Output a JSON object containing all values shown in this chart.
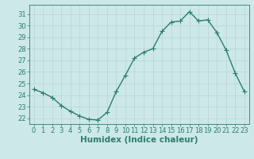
{
  "x": [
    0,
    1,
    2,
    3,
    4,
    5,
    6,
    7,
    8,
    9,
    10,
    11,
    12,
    13,
    14,
    15,
    16,
    17,
    18,
    19,
    20,
    21,
    22,
    23
  ],
  "y": [
    24.5,
    24.2,
    23.8,
    23.1,
    22.6,
    22.2,
    21.9,
    21.85,
    22.5,
    24.3,
    25.7,
    27.2,
    27.7,
    28.0,
    29.5,
    30.3,
    30.4,
    31.2,
    30.4,
    30.5,
    29.4,
    27.9,
    25.9,
    24.3
  ],
  "line_color": "#2e7d6e",
  "bg_color": "#cce8e8",
  "grid_color": "#b8d4d4",
  "xlabel": "Humidex (Indice chaleur)",
  "ylim": [
    21.5,
    31.8
  ],
  "xlim": [
    -0.5,
    23.5
  ],
  "yticks": [
    22,
    23,
    24,
    25,
    26,
    27,
    28,
    29,
    30,
    31
  ],
  "xticks": [
    0,
    1,
    2,
    3,
    4,
    5,
    6,
    7,
    8,
    9,
    10,
    11,
    12,
    13,
    14,
    15,
    16,
    17,
    18,
    19,
    20,
    21,
    22,
    23
  ],
  "marker_size": 2.5,
  "linewidth": 1.0,
  "xlabel_fontsize": 7.5,
  "tick_fontsize": 6.0
}
